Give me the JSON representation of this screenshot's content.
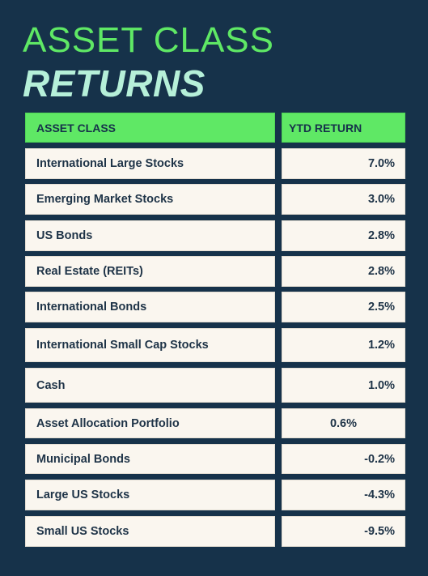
{
  "title": {
    "line1": "ASSET CLASS",
    "line2": "RETURNS"
  },
  "colors": {
    "background": "#16324a",
    "accent_green": "#5fe865",
    "mint": "#b6f0d9",
    "row_bg": "#faf6ef",
    "text": "#1e3347"
  },
  "table": {
    "headers": [
      "ASSET CLASS",
      "YTD RETURN"
    ],
    "rows": [
      {
        "asset": "International Large Stocks",
        "ytd": "7.0%"
      },
      {
        "asset": "Emerging Market Stocks",
        "ytd": "3.0%"
      },
      {
        "asset": "US Bonds",
        "ytd": "2.8%"
      },
      {
        "asset": "Real Estate (REITs)",
        "ytd": "2.8%"
      },
      {
        "asset": "International Bonds",
        "ytd": "2.5%"
      },
      {
        "asset": "International Small Cap Stocks",
        "ytd": "1.2%"
      },
      {
        "asset": "Cash",
        "ytd": "1.0%"
      },
      {
        "asset": "Asset Allocation Portfolio",
        "ytd": "0.6%"
      },
      {
        "asset": "Municipal Bonds",
        "ytd": "-0.2%"
      },
      {
        "asset": "Large US Stocks",
        "ytd": "-4.3%"
      },
      {
        "asset": "Small US Stocks",
        "ytd": "-9.5%"
      }
    ]
  },
  "chart_data": {
    "type": "table",
    "title": "ASSET CLASS RETURNS",
    "columns": [
      "ASSET CLASS",
      "YTD RETURN"
    ],
    "categories": [
      "International Large Stocks",
      "Emerging Market Stocks",
      "US Bonds",
      "Real Estate (REITs)",
      "International Bonds",
      "International Small Cap Stocks",
      "Cash",
      "Asset Allocation Portfolio",
      "Municipal Bonds",
      "Large US Stocks",
      "Small US Stocks"
    ],
    "values": [
      7.0,
      3.0,
      2.8,
      2.8,
      2.5,
      1.2,
      1.0,
      0.6,
      -0.2,
      -4.3,
      -9.5
    ],
    "unit": "%"
  }
}
